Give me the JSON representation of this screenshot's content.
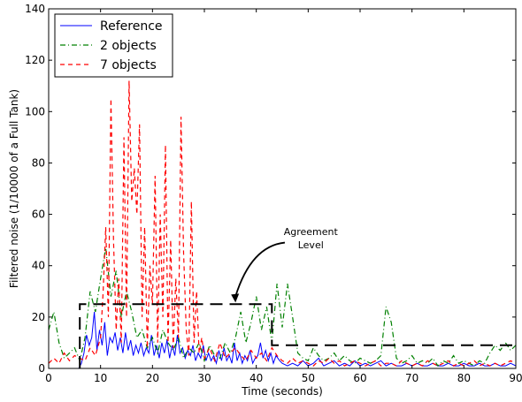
{
  "chart_data": {
    "type": "line",
    "title": "",
    "xlabel": "Time (seconds)",
    "ylabel": "Filtered noise (1/10000 of a Full Tank)",
    "xlim": [
      0,
      90
    ],
    "ylim": [
      0,
      140
    ],
    "xticks": [
      0,
      10,
      20,
      30,
      40,
      50,
      60,
      70,
      80,
      90
    ],
    "xtick_labels": [
      "0",
      "10",
      "20",
      "30",
      "40",
      "50",
      "60",
      "70",
      "80",
      "90"
    ],
    "yticks": [
      0,
      20,
      40,
      60,
      80,
      100,
      120,
      140
    ],
    "ytick_labels": [
      "0",
      "20",
      "40",
      "60",
      "80",
      "100",
      "120",
      "140"
    ],
    "grid": false,
    "legend": {
      "placement": "top-left",
      "entries": [
        "Reference",
        "2 objects",
        "7 objects"
      ]
    },
    "series": [
      {
        "name": "Reference",
        "color": "#0000ff",
        "style": "solid",
        "x": [
          0,
          5,
          5.8,
          6.3,
          6.8,
          7.3,
          7.8,
          8.3,
          8.8,
          9.3,
          9.8,
          10.3,
          10.8,
          11.3,
          11.8,
          12.3,
          12.8,
          13.3,
          13.8,
          14.3,
          14.8,
          15.3,
          15.8,
          16.3,
          16.8,
          17.3,
          17.8,
          18.3,
          18.8,
          19.3,
          19.8,
          20.3,
          20.8,
          21.3,
          21.8,
          22.3,
          22.8,
          23.3,
          23.8,
          24.3,
          24.8,
          25.3,
          25.8,
          26.3,
          26.8,
          27.3,
          27.8,
          28.3,
          28.8,
          29.3,
          29.8,
          30.3,
          30.8,
          31.3,
          31.8,
          32.3,
          32.8,
          33.3,
          33.8,
          34.3,
          34.8,
          35.3,
          35.8,
          36.3,
          36.8,
          37.3,
          37.8,
          38.3,
          38.8,
          39.3,
          39.8,
          40.3,
          40.8,
          41.3,
          41.8,
          42.3,
          42.8,
          43.3,
          43.8,
          44.5,
          45,
          46,
          47,
          48,
          49,
          50,
          51,
          52,
          53,
          54,
          55,
          56,
          57,
          58,
          59,
          60,
          61,
          62,
          63,
          64,
          65,
          66,
          67,
          68,
          69,
          70,
          71,
          72,
          73,
          74,
          75,
          76,
          77,
          78,
          79,
          80,
          81,
          82,
          83,
          84,
          85,
          86,
          87,
          88,
          89,
          90
        ],
        "y": [
          0,
          0,
          0,
          2,
          6,
          13,
          9,
          12,
          22,
          7,
          15,
          9,
          18,
          5,
          12,
          10,
          14,
          7,
          12,
          6,
          14,
          7,
          11,
          5,
          9,
          6,
          10,
          5,
          8,
          6,
          13,
          5,
          9,
          4,
          10,
          6,
          11,
          4,
          9,
          5,
          13,
          6,
          8,
          4,
          7,
          5,
          9,
          3,
          6,
          4,
          9,
          3,
          6,
          3,
          5,
          2,
          7,
          3,
          8,
          3,
          5,
          2,
          10,
          3,
          6,
          2,
          5,
          3,
          7,
          2,
          4,
          5,
          10,
          4,
          7,
          3,
          6,
          2,
          5,
          3,
          2,
          1,
          2,
          1,
          3,
          1,
          2,
          4,
          1,
          2,
          3,
          1,
          2,
          1,
          3,
          1,
          2,
          1,
          2,
          3,
          1,
          2,
          1,
          1,
          2,
          1,
          2,
          1,
          1,
          2,
          1,
          1,
          2,
          1,
          1,
          2,
          1,
          1,
          2,
          1,
          1,
          2,
          1,
          1,
          2,
          1
        ]
      },
      {
        "name": "2 objects",
        "color": "#008000",
        "style": "dashdot",
        "x": [
          0,
          1,
          2,
          3,
          4,
          5,
          6,
          7,
          8,
          9,
          10,
          11,
          12,
          13,
          14,
          15,
          16,
          17,
          18,
          19,
          20,
          21,
          22,
          23,
          24,
          25,
          26,
          27,
          28,
          29,
          30,
          31,
          32,
          33,
          34,
          35,
          36,
          37,
          38,
          39,
          40,
          41,
          42,
          43,
          44,
          45,
          46,
          47,
          48,
          49,
          50,
          51,
          52,
          53,
          54,
          55,
          56,
          57,
          58,
          59,
          60,
          61,
          62,
          63,
          64,
          65,
          66,
          67,
          68,
          69,
          70,
          71,
          72,
          73,
          74,
          75,
          76,
          77,
          78,
          79,
          80,
          81,
          82,
          83,
          84,
          85,
          86,
          87,
          88,
          89,
          90
        ],
        "y": [
          15,
          22,
          10,
          4,
          6,
          8,
          3,
          12,
          30,
          22,
          35,
          47,
          28,
          38,
          20,
          30,
          22,
          12,
          15,
          8,
          12,
          6,
          15,
          10,
          7,
          12,
          4,
          8,
          6,
          10,
          3,
          9,
          5,
          4,
          10,
          6,
          12,
          22,
          10,
          18,
          28,
          15,
          24,
          10,
          33,
          16,
          33,
          20,
          6,
          4,
          3,
          8,
          5,
          3,
          4,
          6,
          3,
          5,
          3,
          2,
          4,
          3,
          2,
          3,
          5,
          24,
          18,
          4,
          2,
          3,
          5,
          2,
          3,
          2,
          4,
          1,
          3,
          2,
          5,
          2,
          3,
          2,
          1,
          3,
          2,
          6,
          9,
          7,
          10,
          7,
          9
        ]
      },
      {
        "name": "7 objects",
        "color": "#ff0000",
        "style": "dashed",
        "x": [
          0,
          1,
          2,
          3,
          4,
          5,
          6,
          7,
          8,
          9,
          10,
          10.5,
          11,
          11.5,
          12,
          12.5,
          13,
          13.5,
          14,
          14.5,
          15,
          15.5,
          16,
          16.5,
          17,
          17.5,
          18,
          18.5,
          19,
          19.5,
          20,
          20.5,
          21,
          21.5,
          22,
          22.5,
          23,
          23.5,
          24,
          24.5,
          25,
          25.5,
          26,
          26.5,
          27,
          27.5,
          28,
          28.5,
          29,
          29.5,
          30,
          31,
          32,
          33,
          34,
          35,
          36,
          37,
          38,
          39,
          40,
          41,
          42,
          43,
          44,
          45,
          46,
          47,
          48,
          49,
          50,
          51,
          52,
          53,
          54,
          55,
          56,
          57,
          58,
          59,
          60,
          61,
          62,
          63,
          64,
          65,
          66,
          67,
          68,
          69,
          70,
          71,
          72,
          73,
          74,
          75,
          76,
          77,
          78,
          79,
          80,
          81,
          82,
          83,
          84,
          85,
          86,
          87,
          88,
          89,
          90
        ],
        "y": [
          2,
          4,
          2,
          6,
          3,
          5,
          4,
          3,
          8,
          5,
          12,
          30,
          55,
          20,
          105,
          50,
          15,
          35,
          10,
          90,
          20,
          112,
          65,
          78,
          60,
          95,
          20,
          55,
          8,
          40,
          25,
          75,
          10,
          60,
          20,
          87,
          10,
          50,
          8,
          35,
          12,
          98,
          45,
          15,
          5,
          65,
          10,
          30,
          6,
          12,
          4,
          8,
          3,
          10,
          4,
          6,
          8,
          5,
          3,
          7,
          4,
          6,
          3,
          8,
          5,
          3,
          2,
          4,
          2,
          3,
          2,
          1,
          3,
          2,
          4,
          2,
          3,
          1,
          2,
          3,
          2,
          1,
          2,
          3,
          1,
          2,
          2,
          1,
          3,
          2,
          1,
          2,
          1,
          3,
          2,
          1,
          2,
          3,
          1,
          2,
          1,
          2,
          3,
          1,
          2,
          1,
          2,
          1,
          2,
          3,
          2
        ]
      },
      {
        "name": "Agreement Level",
        "color": "#000000",
        "style": "longdash",
        "x": [
          6,
          6,
          43,
          43,
          90
        ],
        "y": [
          0,
          25,
          25,
          9,
          9
        ]
      }
    ],
    "annotations": [
      {
        "text_lines": [
          "Agreement",
          "Level"
        ],
        "text_x": 50.5,
        "text_y": 52,
        "arrow_from": [
          45.5,
          49
        ],
        "arrow_to": [
          36,
          26
        ]
      }
    ]
  }
}
